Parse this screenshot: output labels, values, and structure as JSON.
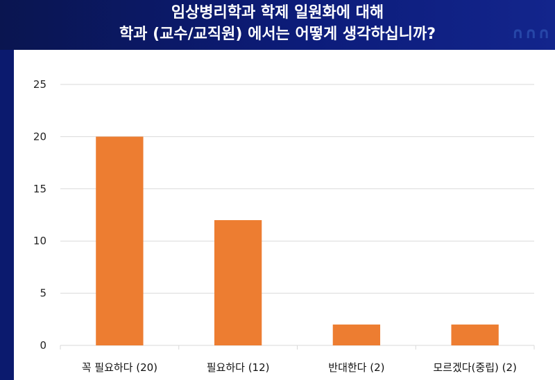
{
  "title": {
    "line1": "임상병리학과 학제 일원화에 대해",
    "line2": "학과 (교수/교직원) 에서는  어떻게 생각하십니까?"
  },
  "chart_data": {
    "type": "bar",
    "categories": [
      "꼭 필요하다 (20)",
      "필요하다 (12)",
      "반대한다 (2)",
      "모르겠다(중립) (2)"
    ],
    "values": [
      20,
      12,
      2,
      2
    ],
    "ylim": [
      0,
      25
    ],
    "yticks": [
      0,
      5,
      10,
      15,
      20,
      25
    ],
    "grid": true,
    "bar_color": "#ED7D31",
    "grid_color": "#D9D9D9"
  }
}
